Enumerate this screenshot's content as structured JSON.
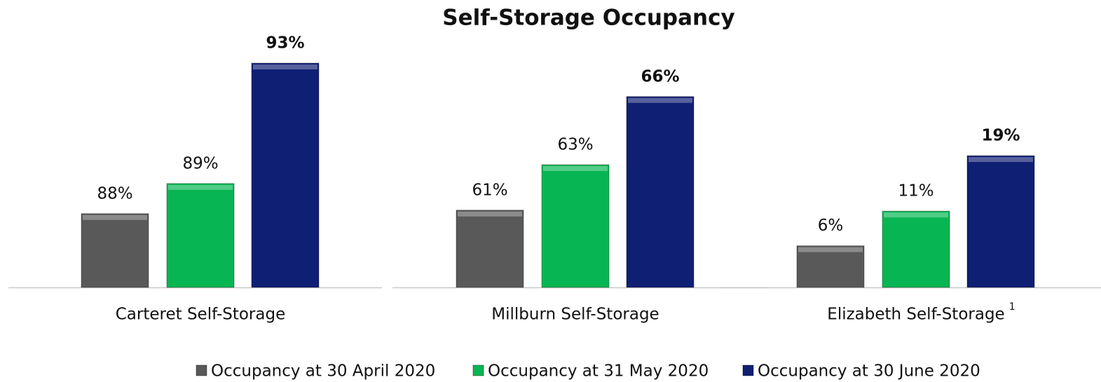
{
  "chart_data": [
    {
      "type": "bar",
      "title": "Self-Storage Occupancy",
      "categories": [
        "Carteret Self-Storage"
      ],
      "series": [
        {
          "name": "Occupancy at 30 April 2020",
          "color": "#595959",
          "values": [
            88
          ],
          "value_labels": [
            "88%"
          ]
        },
        {
          "name": "Occupancy at 31 May 2020",
          "color": "#07b652",
          "values": [
            89
          ],
          "value_labels": [
            "89%"
          ]
        },
        {
          "name": "Occupancy at 30 June 2020",
          "color": "#0f1f73",
          "values": [
            93
          ],
          "value_labels": [
            "93%"
          ]
        }
      ],
      "ylim": [
        85.55,
        93.7
      ]
    },
    {
      "type": "bar",
      "categories": [
        "Millburn Self-Storage"
      ],
      "series": [
        {
          "name": "Occupancy at 30 April 2020",
          "color": "#595959",
          "values": [
            61
          ],
          "value_labels": [
            "61%"
          ]
        },
        {
          "name": "Occupancy at 31 May 2020",
          "color": "#07b652",
          "values": [
            63
          ],
          "value_labels": [
            "63%"
          ]
        },
        {
          "name": "Occupancy at 30 June 2020",
          "color": "#0f1f73",
          "values": [
            66
          ],
          "value_labels": [
            "66%"
          ]
        }
      ],
      "ylim": [
        57.6,
        68.4
      ]
    },
    {
      "type": "bar",
      "categories": [
        "Elizabeth Self-Storage"
      ],
      "footnote_marker": "1",
      "series": [
        {
          "name": "Occupancy at 30 April 2020",
          "color": "#595959",
          "values": [
            6
          ],
          "value_labels": [
            "6%"
          ]
        },
        {
          "name": "Occupancy at 31 May 2020",
          "color": "#07b652",
          "values": [
            11
          ],
          "value_labels": [
            "11%"
          ]
        },
        {
          "name": "Occupancy at 30 June 2020",
          "color": "#0f1f73",
          "values": [
            19
          ],
          "value_labels": [
            "19%"
          ]
        }
      ],
      "ylim": [
        0,
        35.4
      ]
    }
  ]
}
